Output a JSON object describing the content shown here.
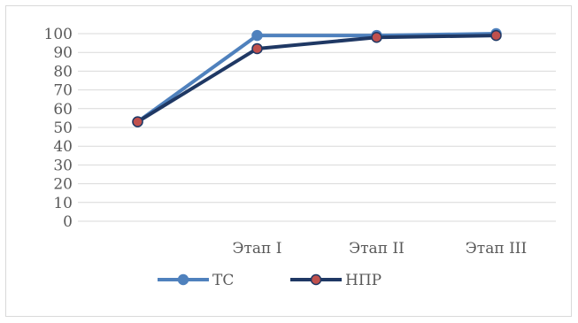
{
  "chart_data": {
    "type": "line",
    "categories": [
      "",
      "Этап I",
      "Этап II",
      "Этап III"
    ],
    "ylim": [
      0,
      100
    ],
    "yticks": [
      0,
      10,
      20,
      30,
      40,
      50,
      60,
      70,
      80,
      90,
      100
    ],
    "grid": true,
    "legend_position": "bottom",
    "series": [
      {
        "name": "ТС",
        "values": [
          53,
          99,
          99,
          100
        ],
        "color": "#4f81bd",
        "marker_color": "#4f81bd"
      },
      {
        "name": "НПР",
        "values": [
          53,
          92,
          98,
          99
        ],
        "color": "#1f3864",
        "marker_color": "#c0504d"
      }
    ]
  }
}
